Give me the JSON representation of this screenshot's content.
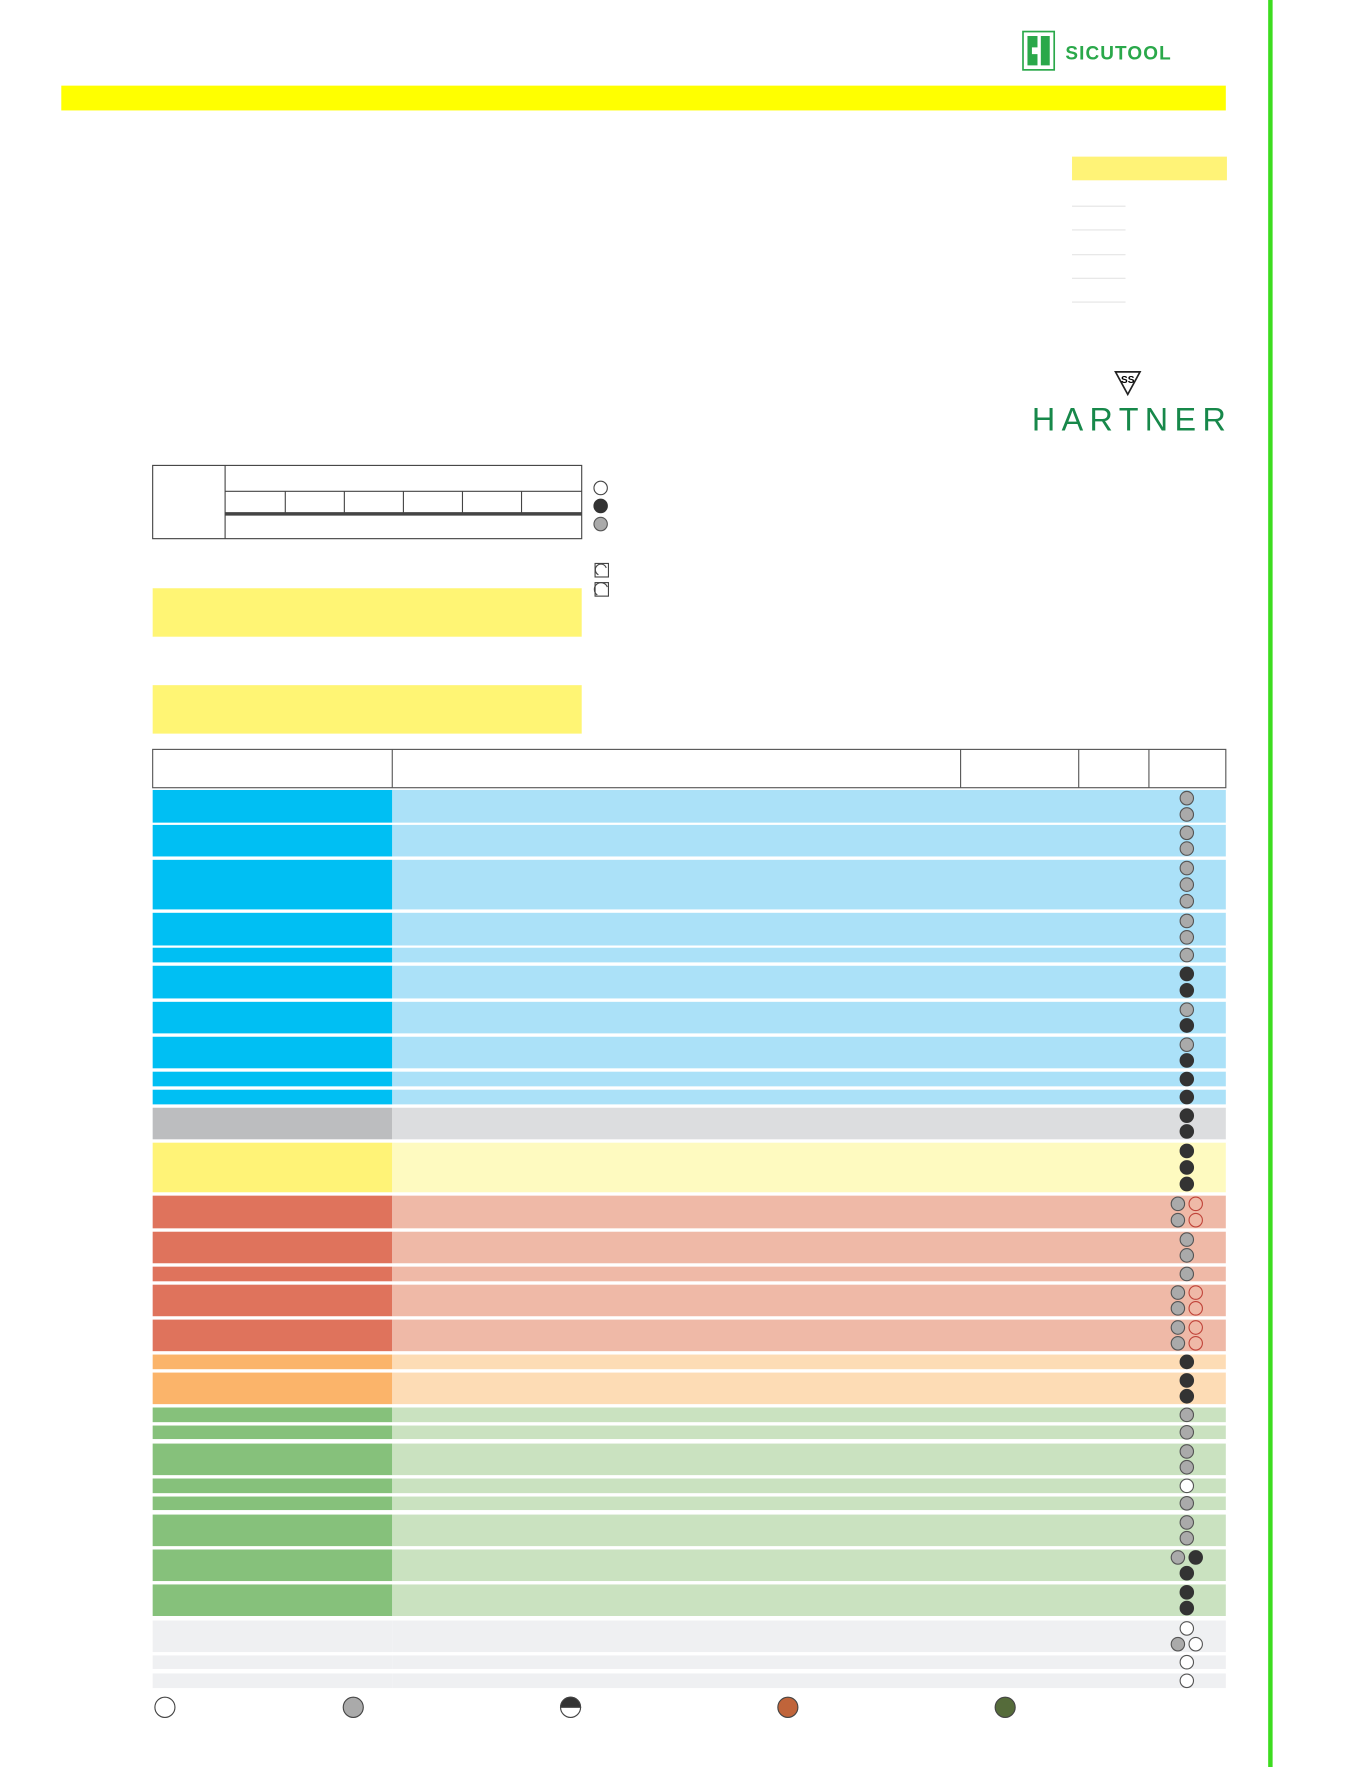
{
  "header": {
    "brand": "SICUTOOL"
  },
  "logo": {
    "text": "HARTNER"
  }
}
